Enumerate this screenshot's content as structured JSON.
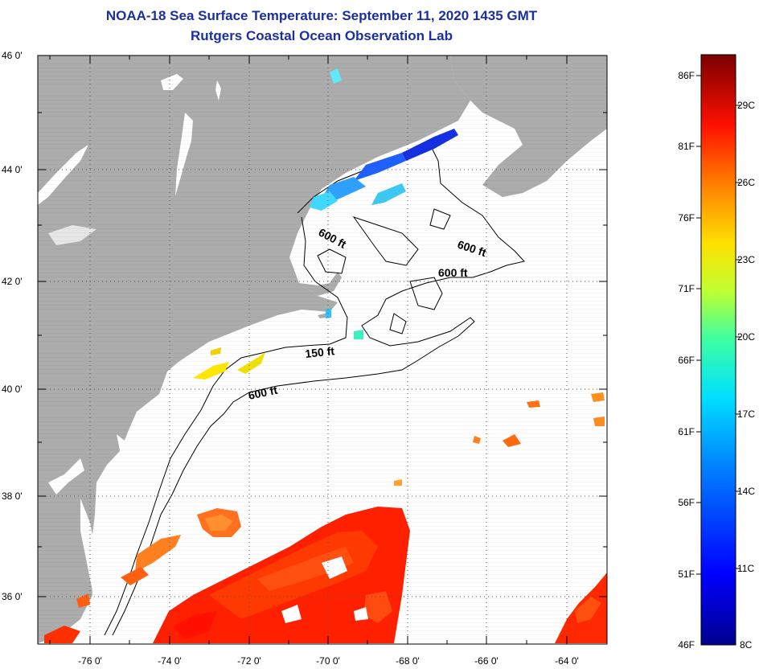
{
  "header": {
    "title": "NOAA-18 Sea Surface Temperature:  September 11, 2020 1435 GMT",
    "subtitle": "Rutgers Coastal Ocean Observation Lab"
  },
  "map": {
    "lon_range": [
      -77,
      -63
    ],
    "lat_range": [
      35,
      46
    ],
    "lat_ticks": [
      "46 0'",
      "44 0'",
      "42 0'",
      "40 0'",
      "38 0'",
      "36 0'"
    ],
    "lon_ticks": [
      "-76 0'",
      "-74 0'",
      "-72 0'",
      "-70 0'",
      "-68 0'",
      "-66 0'",
      "-64 0'"
    ],
    "contour_labels": [
      "600 ft",
      "600 ft",
      "600 ft",
      "150 ft",
      "600 ft"
    ],
    "colors": {
      "land": "#acacac",
      "water_no_data": "#ffffff",
      "grid": "#555555"
    }
  },
  "colorbar": {
    "fahrenheit_labels": [
      "86F",
      "81F",
      "76F",
      "71F",
      "66F",
      "61F",
      "56F",
      "51F",
      "46F"
    ],
    "celsius_labels": [
      "29C",
      "26C",
      "23C",
      "20C",
      "17C",
      "14C",
      "11C",
      "8C"
    ],
    "range_c": [
      8,
      31
    ]
  }
}
